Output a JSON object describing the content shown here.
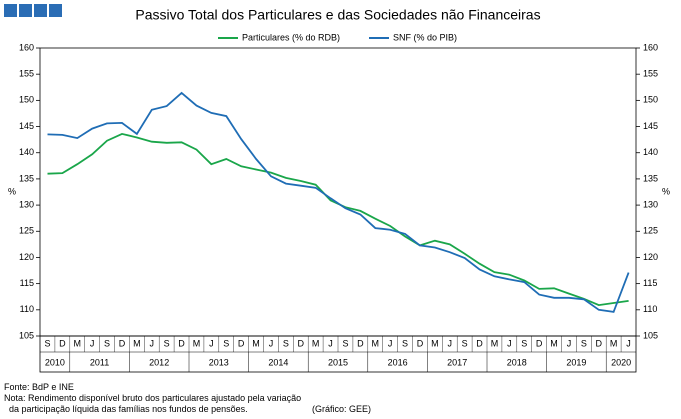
{
  "chart_data": {
    "type": "line",
    "title": "Passivo Total dos Particulares e das Sociedades não Financeiras",
    "categories": [
      "S",
      "D",
      "M",
      "J",
      "S",
      "D",
      "M",
      "J",
      "S",
      "D",
      "M",
      "J",
      "S",
      "D",
      "M",
      "J",
      "S",
      "D",
      "M",
      "J",
      "S",
      "D",
      "M",
      "J",
      "S",
      "D",
      "M",
      "J",
      "S",
      "D",
      "M",
      "J",
      "S",
      "D",
      "M",
      "J",
      "S",
      "D",
      "M",
      "J"
    ],
    "year_labels": [
      "2010",
      "2011",
      "2012",
      "2013",
      "2014",
      "2015",
      "2016",
      "2017",
      "2018",
      "2019",
      "2020"
    ],
    "ylabel": "%",
    "y2label": "%",
    "ylim": [
      105,
      160
    ],
    "yticks": [
      105,
      110,
      115,
      120,
      125,
      130,
      135,
      140,
      145,
      150,
      155,
      160
    ],
    "y2lim": [
      105,
      160
    ],
    "y2ticks": [
      105,
      110,
      115,
      120,
      125,
      130,
      135,
      140,
      145,
      150,
      155,
      160
    ],
    "grid": false,
    "series": [
      {
        "name": "Particulares (% do RDB)",
        "color": "#1aa64a",
        "values": [
          136.0,
          136.1,
          137.8,
          139.7,
          142.3,
          143.6,
          142.9,
          142.1,
          141.9,
          142.0,
          140.6,
          137.8,
          138.8,
          137.4,
          136.8,
          136.2,
          135.2,
          134.6,
          133.9,
          130.9,
          129.6,
          128.9,
          127.4,
          126.0,
          124.0,
          122.3,
          123.2,
          122.5,
          120.7,
          118.8,
          117.2,
          116.7,
          115.6,
          114.0,
          114.1,
          113.1,
          112.1,
          110.9,
          111.3,
          111.7
        ]
      },
      {
        "name": "SNF (% do PIB)",
        "color": "#1f6db5",
        "values": [
          143.5,
          143.4,
          142.8,
          144.6,
          145.6,
          145.7,
          143.6,
          148.2,
          148.9,
          151.4,
          149.0,
          147.6,
          147.0,
          142.6,
          138.8,
          135.5,
          134.1,
          133.7,
          133.3,
          131.3,
          129.4,
          128.2,
          125.6,
          125.3,
          124.5,
          122.3,
          121.9,
          121.0,
          119.9,
          117.7,
          116.4,
          115.8,
          115.3,
          112.9,
          112.3,
          112.3,
          112.0,
          110.0,
          109.6,
          117.1
        ]
      }
    ]
  },
  "notes": {
    "source": "Fonte: BdP e INE",
    "note_1": "Nota: Rendimento disponível bruto dos particulares ajustado pela variação",
    "note_2": "da participação líquida das famílias nos fundos de pensões.",
    "credit": "(Gráfico: GEE)"
  }
}
